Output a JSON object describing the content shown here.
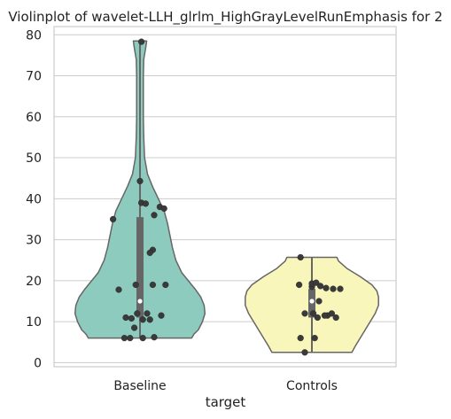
{
  "chart_data": {
    "type": "violin",
    "title": "Violinplot of wavelet-LLH_glrlm_HighGrayLevelRunEmphasis for 2",
    "xlabel": "target",
    "ylabel": "",
    "categories": [
      "Baseline",
      "Controls"
    ],
    "ylim": [
      -1,
      82
    ],
    "yticks": [
      0,
      10,
      20,
      30,
      40,
      50,
      60,
      70,
      80
    ],
    "grid": true,
    "colors": {
      "Baseline": "#8ecbbf",
      "Controls": "#f8f6bb",
      "outline": "#666666",
      "points": "#3a3a3a",
      "box": "#666666",
      "grid": "#cccccc",
      "median": "#ffffff"
    },
    "series": [
      {
        "category": "Baseline",
        "min": 6,
        "q1": 11,
        "median": 15,
        "q3": 35.5,
        "max": 78.5,
        "density_profile": [
          [
            6,
            0.62
          ],
          [
            7,
            0.65
          ],
          [
            8,
            0.7
          ],
          [
            10,
            0.75
          ],
          [
            12,
            0.78
          ],
          [
            14,
            0.77
          ],
          [
            16,
            0.73
          ],
          [
            18,
            0.66
          ],
          [
            20,
            0.58
          ],
          [
            22,
            0.5
          ],
          [
            25,
            0.43
          ],
          [
            28,
            0.39
          ],
          [
            31,
            0.36
          ],
          [
            34,
            0.33
          ],
          [
            37,
            0.29
          ],
          [
            40,
            0.22
          ],
          [
            43,
            0.15
          ],
          [
            46,
            0.09
          ],
          [
            50,
            0.055
          ],
          [
            55,
            0.045
          ],
          [
            60,
            0.04
          ],
          [
            65,
            0.04
          ],
          [
            70,
            0.04
          ],
          [
            74,
            0.045
          ],
          [
            77,
            0.07
          ],
          [
            78.5,
            0.08
          ]
        ],
        "points": [
          [
            -0.11,
            6
          ],
          [
            -0.07,
            6
          ],
          [
            0.02,
            6
          ],
          [
            0.1,
            6.2
          ],
          [
            -0.04,
            8.5
          ],
          [
            -0.1,
            11
          ],
          [
            -0.02,
            12
          ],
          [
            0.05,
            12
          ],
          [
            0.15,
            11.5
          ],
          [
            0.02,
            10.5
          ],
          [
            0.07,
            10.5
          ],
          [
            -0.06,
            10.8
          ],
          [
            -0.03,
            19
          ],
          [
            0.18,
            19
          ],
          [
            0.09,
            19
          ],
          [
            -0.15,
            17.8
          ],
          [
            0.09,
            27.5
          ],
          [
            0.07,
            26.8
          ],
          [
            -0.19,
            35
          ],
          [
            0.1,
            36
          ],
          [
            0.01,
            39
          ],
          [
            0.04,
            38.8
          ],
          [
            0.14,
            38
          ],
          [
            0.17,
            37.6
          ],
          [
            0.0,
            44.3
          ],
          [
            0.01,
            78.3
          ]
        ]
      },
      {
        "category": "Controls",
        "min": 2.5,
        "q1": 11,
        "median": 15,
        "q3": 18,
        "max": 25.7,
        "density_profile": [
          [
            2.5,
            0.48
          ],
          [
            4,
            0.52
          ],
          [
            6,
            0.58
          ],
          [
            8,
            0.64
          ],
          [
            10,
            0.7
          ],
          [
            12,
            0.76
          ],
          [
            14,
            0.8
          ],
          [
            16,
            0.8
          ],
          [
            17.5,
            0.78
          ],
          [
            19,
            0.72
          ],
          [
            21,
            0.58
          ],
          [
            23,
            0.42
          ],
          [
            24.8,
            0.32
          ],
          [
            25.7,
            0.3
          ]
        ],
        "points": [
          [
            -0.05,
            2.5
          ],
          [
            -0.08,
            6
          ],
          [
            0.02,
            6
          ],
          [
            0.11,
            11.5
          ],
          [
            0.14,
            12
          ],
          [
            0.17,
            11
          ],
          [
            0.04,
            11
          ],
          [
            0.09,
            11.5
          ],
          [
            -0.05,
            12
          ],
          [
            0.01,
            12
          ],
          [
            -0.09,
            19
          ],
          [
            0.0,
            18.5
          ],
          [
            0.06,
            18.7
          ],
          [
            0.15,
            18
          ],
          [
            0.1,
            18.2
          ],
          [
            0.2,
            18
          ],
          [
            0.0,
            19.3
          ],
          [
            0.03,
            19.5
          ],
          [
            -0.08,
            25.7
          ],
          [
            0.05,
            15
          ]
        ]
      }
    ]
  }
}
